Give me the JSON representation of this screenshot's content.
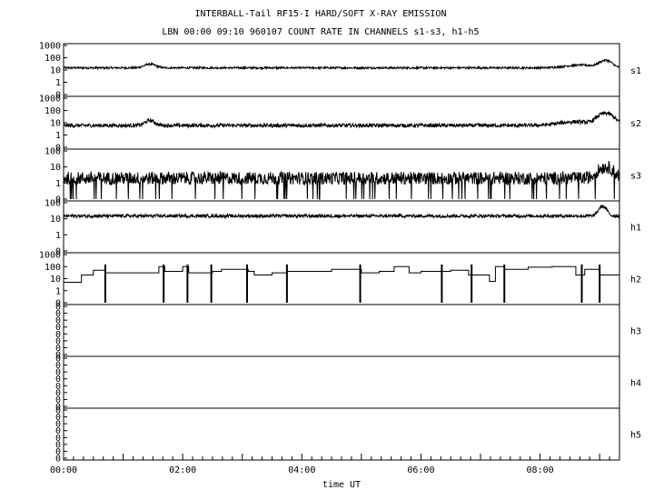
{
  "title": "INTERBALL-Tail RF15-I HARD/SOFT X-RAY EMISSION",
  "subtitle": "LBN 00:00 09:10 960107  COUNT RATE IN CHANNELS s1-s3, h1-h5",
  "chart_data": {
    "type": "line",
    "title": "INTERBALL-Tail RF15-I HARD/SOFT X-RAY EMISSION",
    "subtitle": "LBN 00:00 09:10 960107  COUNT RATE IN CHANNELS s1-s3, h1-h5",
    "xlabel": "time UT",
    "x_range_hours": [
      0,
      9.333
    ],
    "x_ticks": [
      "00:00",
      "02:00",
      "04:00",
      "06:00",
      "08:00"
    ],
    "x_tick_hours": [
      0,
      2,
      4,
      6,
      8
    ],
    "y_scale": "log",
    "grid": false,
    "panels": [
      {
        "name": "s1",
        "y_ticks": [
          "1000",
          "100",
          "10",
          "1",
          "0"
        ],
        "baseline": 15,
        "noise": 0.08,
        "features": [
          {
            "t": 1.45,
            "value": 30,
            "width": 0.12
          },
          {
            "t": 8.7,
            "value": 25,
            "width": 0.35
          },
          {
            "t": 9.1,
            "value": 60,
            "width": 0.12
          }
        ]
      },
      {
        "name": "s2",
        "y_ticks": [
          "1000",
          "100",
          "10",
          "1",
          "0"
        ],
        "baseline": 6,
        "noise": 0.15,
        "features": [
          {
            "t": 1.45,
            "value": 15,
            "width": 0.1
          },
          {
            "t": 8.6,
            "value": 12,
            "width": 0.35
          },
          {
            "t": 9.1,
            "value": 60,
            "width": 0.15
          }
        ]
      },
      {
        "name": "s3",
        "y_ticks": [
          "100",
          "10",
          "1",
          "0"
        ],
        "baseline": 2,
        "noise": 0.4,
        "dropouts": true,
        "features": [
          {
            "t": 9.1,
            "value": 10,
            "width": 0.15
          }
        ]
      },
      {
        "name": "h1",
        "y_ticks": [
          "100",
          "10",
          "1",
          "0"
        ],
        "baseline": 15,
        "noise": 0.1,
        "features": [
          {
            "t": 9.05,
            "value": 60,
            "width": 0.08
          }
        ]
      },
      {
        "name": "h2",
        "y_ticks": [
          "1000",
          "100",
          "10",
          "1",
          "0"
        ],
        "step_series": {
          "t": [
            0,
            0.3,
            0.5,
            0.7,
            1.6,
            1.7,
            2.0,
            2.1,
            2.5,
            2.65,
            3.1,
            3.2,
            3.5,
            3.75,
            4.5,
            5.0,
            5.3,
            5.55,
            5.8,
            6.0,
            6.5,
            6.8,
            7.15,
            7.25,
            7.4,
            7.8,
            8.2,
            8.6,
            8.75,
            9.0,
            9.33
          ],
          "y": [
            5,
            20,
            50,
            30,
            100,
            40,
            100,
            30,
            40,
            60,
            40,
            20,
            30,
            40,
            60,
            30,
            40,
            100,
            30,
            40,
            50,
            20,
            6,
            100,
            60,
            90,
            100,
            20,
            60,
            20,
            20
          ]
        },
        "spikes_hours": [
          0.7,
          1.68,
          2.08,
          2.48,
          3.08,
          3.75,
          4.98,
          6.35,
          6.85,
          7.4,
          8.7,
          9.0
        ]
      },
      {
        "name": "h3",
        "y_ticks": [
          "0",
          "0",
          "0",
          "0",
          "0",
          "0",
          "0",
          "0"
        ],
        "empty": true
      },
      {
        "name": "h4",
        "y_ticks": [
          "0",
          "0",
          "0",
          "0",
          "0",
          "0",
          "0",
          "0"
        ],
        "empty": true
      },
      {
        "name": "h5",
        "y_ticks": [
          "0",
          "0",
          "0",
          "0",
          "0",
          "0",
          "0",
          "0"
        ],
        "empty": true
      }
    ]
  }
}
